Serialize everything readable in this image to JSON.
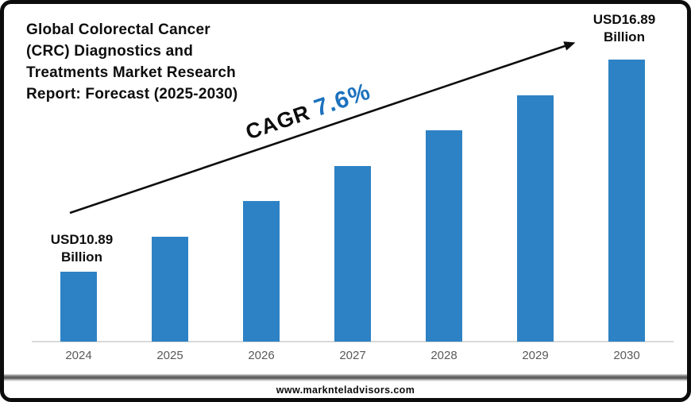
{
  "page": {
    "footer_url": "www.marknteladvisors.com"
  },
  "chart_data": {
    "type": "bar",
    "title": "Global Colorectal Cancer (CRC) Diagnostics and Treatments Market Research Report: Forecast (2025-2030)",
    "title_lines": [
      "Global Colorectal Cancer",
      "(CRC) Diagnostics and",
      "Treatments Market Research",
      "Report: Forecast (2025-2030)"
    ],
    "categories": [
      "2024",
      "2025",
      "2026",
      "2027",
      "2028",
      "2029",
      "2030"
    ],
    "values": [
      10.89,
      11.89,
      12.89,
      13.89,
      14.89,
      15.89,
      16.89
    ],
    "unit": "USD Billion",
    "labeled_points": [
      {
        "category": "2024",
        "label": "USD10.89 Billion"
      },
      {
        "category": "2030",
        "label": "USD16.89 Billion"
      }
    ],
    "first_bar_label": {
      "value": "USD10.89",
      "unit": "Billion"
    },
    "last_bar_label": {
      "value": "USD16.89",
      "unit": "Billion"
    },
    "cagr": {
      "prefix": "CAGR",
      "value": "7.6%"
    },
    "bar_color": "#2D82C5",
    "cagr_value_color": "#1C72BE",
    "arrow_color": "#0d0d0d",
    "axis_line_color": "#D9D9D9",
    "tick_label_color": "#595959",
    "xlabel": "",
    "ylabel": "",
    "ylim": [
      10,
      17.5
    ],
    "grid": false,
    "legend": "none",
    "value_axis_visible": false
  }
}
